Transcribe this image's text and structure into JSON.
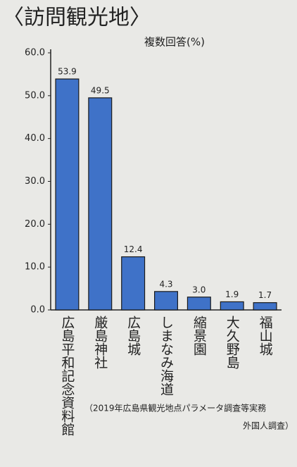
{
  "chart_data": {
    "type": "bar",
    "title": "〈訪問観光地〉",
    "subtitle": "複数回答(%)",
    "categories": [
      "広島平和記念資料館",
      "厳島神社",
      "広島城",
      "しまなみ海道",
      "縮景園",
      "大久野島",
      "福山城"
    ],
    "values": [
      53.9,
      49.5,
      12.4,
      4.3,
      3.0,
      1.9,
      1.7
    ],
    "value_labels": [
      "53.9",
      "49.5",
      "12.4",
      "4.3",
      "3.0",
      "1.9",
      "1.7"
    ],
    "color": "#3f72c8",
    "ylim": [
      0,
      60
    ],
    "yticks": [
      {
        "value": 0,
        "label": "0.0"
      },
      {
        "value": 10,
        "label": "10.0"
      },
      {
        "value": 20,
        "label": "20.0"
      },
      {
        "value": 30,
        "label": "30.0"
      },
      {
        "value": 40,
        "label": "40.0"
      },
      {
        "value": 50,
        "label": "50.0"
      },
      {
        "value": 60,
        "label": "60.0"
      }
    ],
    "grid": false,
    "source": [
      "（2019年広島県観光地点パラメータ調査等実務",
      "外国人調査）"
    ]
  }
}
